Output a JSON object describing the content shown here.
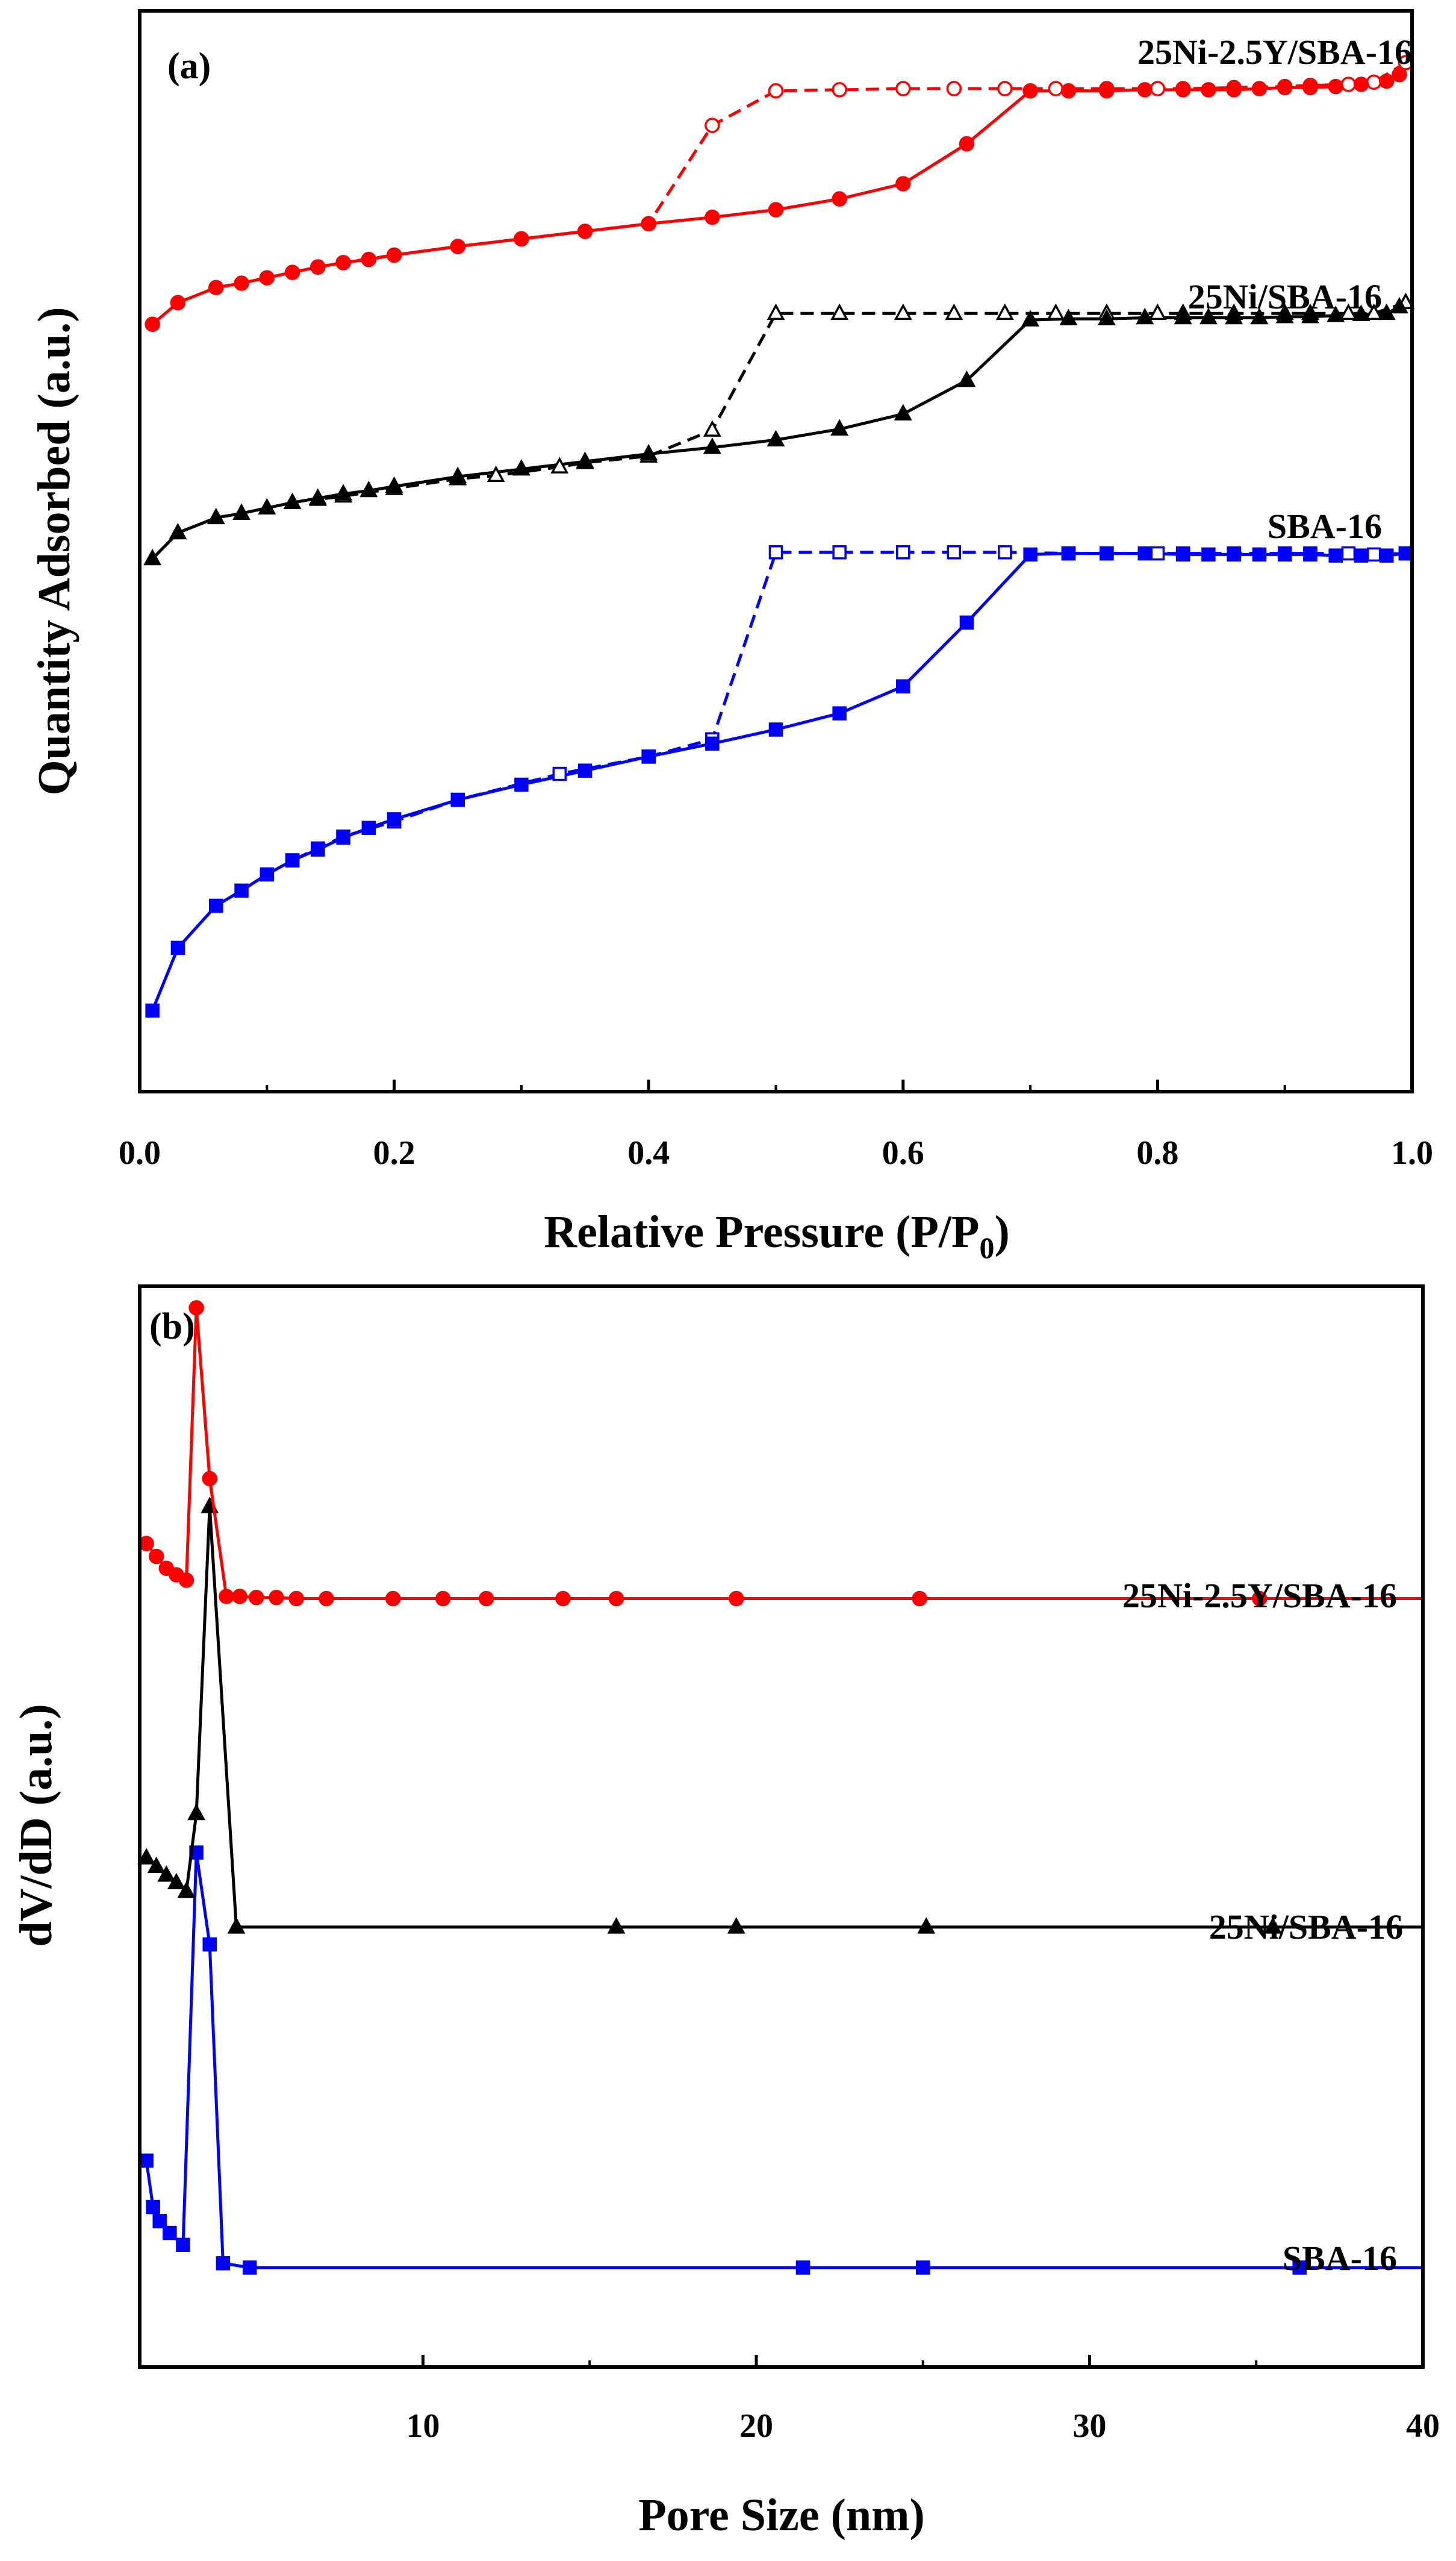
{
  "chart_data": [
    {
      "type": "line",
      "panel_label": "(a)",
      "title": "",
      "xlabel": "Relative Pressure (P/P",
      "xlabel_sub": "0",
      "xlabel_end": ")",
      "ylabel": "Quantity Adsorbed (a.u.)",
      "xlim": [
        0.0,
        1.0
      ],
      "ylim": [
        0,
        100
      ],
      "xticks": [
        0.0,
        0.2,
        0.4,
        0.6,
        0.8,
        1.0
      ],
      "xtick_labels": [
        "0.0",
        "0.2",
        "0.4",
        "0.6",
        "0.8",
        "1.0"
      ],
      "y_ticks_shown": false,
      "series": [
        {
          "name": "SBA-16",
          "label": "SBA-16",
          "color": "#0000ff",
          "marker": "square",
          "adsorption": [
            [
              0.01,
              7.5
            ],
            [
              0.03,
              13.3
            ],
            [
              0.06,
              17.2
            ],
            [
              0.08,
              18.6
            ],
            [
              0.1,
              20.1
            ],
            [
              0.12,
              21.4
            ],
            [
              0.14,
              22.4
            ],
            [
              0.16,
              23.5
            ],
            [
              0.18,
              24.4
            ],
            [
              0.2,
              25.2
            ],
            [
              0.25,
              27.0
            ],
            [
              0.3,
              28.4
            ],
            [
              0.35,
              29.7
            ],
            [
              0.4,
              31.0
            ],
            [
              0.45,
              32.2
            ],
            [
              0.5,
              33.5
            ],
            [
              0.55,
              35.0
            ],
            [
              0.6,
              37.5
            ],
            [
              0.65,
              43.4
            ],
            [
              0.7,
              49.7
            ],
            [
              0.73,
              49.8
            ],
            [
              0.76,
              49.8
            ],
            [
              0.79,
              49.8
            ],
            [
              0.82,
              49.7
            ],
            [
              0.84,
              49.7
            ],
            [
              0.86,
              49.7
            ],
            [
              0.88,
              49.7
            ],
            [
              0.9,
              49.7
            ],
            [
              0.92,
              49.7
            ],
            [
              0.94,
              49.6
            ],
            [
              0.96,
              49.6
            ],
            [
              0.98,
              49.6
            ],
            [
              0.995,
              49.8
            ]
          ],
          "desorption": [
            [
              0.995,
              49.8
            ],
            [
              0.97,
              49.7
            ],
            [
              0.95,
              49.8
            ],
            [
              0.92,
              49.8
            ],
            [
              0.9,
              49.8
            ],
            [
              0.86,
              49.8
            ],
            [
              0.82,
              49.8
            ],
            [
              0.8,
              49.8
            ],
            [
              0.76,
              49.8
            ],
            [
              0.73,
              49.8
            ],
            [
              0.68,
              49.9
            ],
            [
              0.64,
              49.9
            ],
            [
              0.6,
              49.9
            ],
            [
              0.55,
              49.9
            ],
            [
              0.5,
              49.9
            ],
            [
              0.45,
              32.6
            ],
            [
              0.4,
              31.0
            ],
            [
              0.33,
              29.4
            ],
            [
              0.25,
              27.0
            ],
            [
              0.2,
              25.0
            ],
            [
              0.16,
              23.6
            ],
            [
              0.14,
              22.5
            ],
            [
              0.12,
              21.4
            ]
          ]
        },
        {
          "name": "25Ni/SBA-16",
          "label": "25Ni/SBA-16",
          "color": "#000000",
          "marker": "triangle",
          "adsorption": [
            [
              0.01,
              49.3
            ],
            [
              0.03,
              51.7
            ],
            [
              0.06,
              53.1
            ],
            [
              0.08,
              53.5
            ],
            [
              0.1,
              54.0
            ],
            [
              0.12,
              54.5
            ],
            [
              0.14,
              54.9
            ],
            [
              0.16,
              55.3
            ],
            [
              0.18,
              55.6
            ],
            [
              0.2,
              56.0
            ],
            [
              0.25,
              56.9
            ],
            [
              0.3,
              57.6
            ],
            [
              0.35,
              58.3
            ],
            [
              0.4,
              59.0
            ],
            [
              0.45,
              59.6
            ],
            [
              0.5,
              60.3
            ],
            [
              0.55,
              61.3
            ],
            [
              0.6,
              62.7
            ],
            [
              0.65,
              65.8
            ],
            [
              0.7,
              71.4
            ],
            [
              0.73,
              71.5
            ],
            [
              0.76,
              71.5
            ],
            [
              0.79,
              71.6
            ],
            [
              0.82,
              71.6
            ],
            [
              0.84,
              71.6
            ],
            [
              0.86,
              71.6
            ],
            [
              0.88,
              71.6
            ],
            [
              0.9,
              71.7
            ],
            [
              0.92,
              71.7
            ],
            [
              0.94,
              71.8
            ],
            [
              0.96,
              71.9
            ],
            [
              0.98,
              72.0
            ],
            [
              0.99,
              72.6
            ]
          ],
          "desorption": [
            [
              0.995,
              73.0
            ],
            [
              0.97,
              72.0
            ],
            [
              0.95,
              72.0
            ],
            [
              0.92,
              72.0
            ],
            [
              0.9,
              72.0
            ],
            [
              0.86,
              72.0
            ],
            [
              0.82,
              72.0
            ],
            [
              0.8,
              72.0
            ],
            [
              0.76,
              72.0
            ],
            [
              0.72,
              72.0
            ],
            [
              0.68,
              72.0
            ],
            [
              0.64,
              72.0
            ],
            [
              0.6,
              72.0
            ],
            [
              0.55,
              72.0
            ],
            [
              0.5,
              72.0
            ],
            [
              0.45,
              61.2
            ],
            [
              0.4,
              58.8
            ],
            [
              0.35,
              58.2
            ],
            [
              0.33,
              57.8
            ],
            [
              0.28,
              57.0
            ],
            [
              0.25,
              56.7
            ],
            [
              0.2,
              55.8
            ],
            [
              0.16,
              55.1
            ],
            [
              0.14,
              54.8
            ]
          ]
        },
        {
          "name": "25Ni-2.5Y/SBA-16",
          "label": "25Ni-2.5Y/SBA-16",
          "color": "#ff0000",
          "marker": "circle",
          "adsorption": [
            [
              0.01,
              71.0
            ],
            [
              0.03,
              73.0
            ],
            [
              0.06,
              74.4
            ],
            [
              0.08,
              74.8
            ],
            [
              0.1,
              75.3
            ],
            [
              0.12,
              75.8
            ],
            [
              0.14,
              76.3
            ],
            [
              0.16,
              76.7
            ],
            [
              0.18,
              77.0
            ],
            [
              0.2,
              77.4
            ],
            [
              0.25,
              78.2
            ],
            [
              0.3,
              78.9
            ],
            [
              0.35,
              79.6
            ],
            [
              0.4,
              80.3
            ],
            [
              0.45,
              80.9
            ],
            [
              0.5,
              81.6
            ],
            [
              0.55,
              82.6
            ],
            [
              0.6,
              84.0
            ],
            [
              0.65,
              87.7
            ],
            [
              0.7,
              92.6
            ],
            [
              0.73,
              92.6
            ],
            [
              0.76,
              92.6
            ],
            [
              0.79,
              92.7
            ],
            [
              0.82,
              92.7
            ],
            [
              0.84,
              92.7
            ],
            [
              0.86,
              92.7
            ],
            [
              0.88,
              92.8
            ],
            [
              0.9,
              92.9
            ],
            [
              0.92,
              92.9
            ],
            [
              0.94,
              93.0
            ],
            [
              0.96,
              93.2
            ],
            [
              0.98,
              93.5
            ],
            [
              0.99,
              94.1
            ]
          ],
          "desorption": [
            [
              0.995,
              95.2
            ],
            [
              0.97,
              93.4
            ],
            [
              0.95,
              93.2
            ],
            [
              0.92,
              93.1
            ],
            [
              0.9,
              93.0
            ],
            [
              0.86,
              92.9
            ],
            [
              0.82,
              92.8
            ],
            [
              0.8,
              92.8
            ],
            [
              0.76,
              92.8
            ],
            [
              0.72,
              92.8
            ],
            [
              0.68,
              92.8
            ],
            [
              0.64,
              92.8
            ],
            [
              0.6,
              92.8
            ],
            [
              0.55,
              92.7
            ],
            [
              0.5,
              92.6
            ],
            [
              0.45,
              89.4
            ],
            [
              0.4,
              80.3
            ],
            [
              0.35,
              79.6
            ],
            [
              0.3,
              78.9
            ],
            [
              0.25,
              78.2
            ],
            [
              0.2,
              77.4
            ],
            [
              0.16,
              76.7
            ],
            [
              0.14,
              76.3
            ]
          ]
        }
      ]
    },
    {
      "type": "line",
      "panel_label": "(b)",
      "title": "",
      "xlabel": "Pore Size (nm)",
      "ylabel": "dV/dD (a.u.)",
      "xlim": [
        1.5,
        40
      ],
      "ylim": [
        0,
        100
      ],
      "xticks": [
        10,
        20,
        30,
        40
      ],
      "xtick_labels": [
        "10",
        "20",
        "30",
        "40"
      ],
      "y_ticks_shown": false,
      "series": [
        {
          "name": "SBA-16",
          "label": "SBA-16",
          "color": "#0000ff",
          "marker": "square",
          "points": [
            [
              1.7,
              19.1
            ],
            [
              1.9,
              14.8
            ],
            [
              2.1,
              13.5
            ],
            [
              2.4,
              12.4
            ],
            [
              2.8,
              11.3
            ],
            [
              3.2,
              47.6
            ],
            [
              3.6,
              39.1
            ],
            [
              4.0,
              9.6
            ],
            [
              4.8,
              9.2
            ],
            [
              21.4,
              9.2
            ],
            [
              25.0,
              9.2
            ],
            [
              36.3,
              9.2
            ],
            [
              40,
              9.2
            ]
          ]
        },
        {
          "name": "25Ni/SBA-16",
          "label": "25Ni/SBA-16",
          "color": "#000000",
          "marker": "triangle",
          "points": [
            [
              1.7,
              47.1
            ],
            [
              2.0,
              46.3
            ],
            [
              2.3,
              45.5
            ],
            [
              2.6,
              44.8
            ],
            [
              2.9,
              44.0
            ],
            [
              3.2,
              51.2
            ],
            [
              3.6,
              79.6
            ],
            [
              4.4,
              40.7
            ],
            [
              15.8,
              40.7
            ],
            [
              19.4,
              40.7
            ],
            [
              25.1,
              40.7
            ],
            [
              35.5,
              40.7
            ],
            [
              40,
              40.7
            ]
          ]
        },
        {
          "name": "25Ni-2.5Y/SBA-16",
          "label": "25Ni-2.5Y/SBA-16",
          "color": "#ff0000",
          "marker": "circle",
          "points": [
            [
              1.7,
              76.2
            ],
            [
              2.0,
              75.0
            ],
            [
              2.3,
              73.9
            ],
            [
              2.6,
              73.3
            ],
            [
              2.9,
              72.8
            ],
            [
              3.2,
              98.0
            ],
            [
              3.6,
              82.2
            ],
            [
              4.1,
              71.3
            ],
            [
              4.5,
              71.3
            ],
            [
              5.0,
              71.2
            ],
            [
              5.6,
              71.2
            ],
            [
              6.2,
              71.1
            ],
            [
              7.1,
              71.1
            ],
            [
              9.1,
              71.1
            ],
            [
              10.6,
              71.1
            ],
            [
              11.9,
              71.1
            ],
            [
              14.2,
              71.1
            ],
            [
              15.8,
              71.1
            ],
            [
              19.4,
              71.1
            ],
            [
              24.9,
              71.1
            ],
            [
              35.1,
              71.1
            ],
            [
              40,
              71.1
            ]
          ]
        }
      ]
    }
  ]
}
